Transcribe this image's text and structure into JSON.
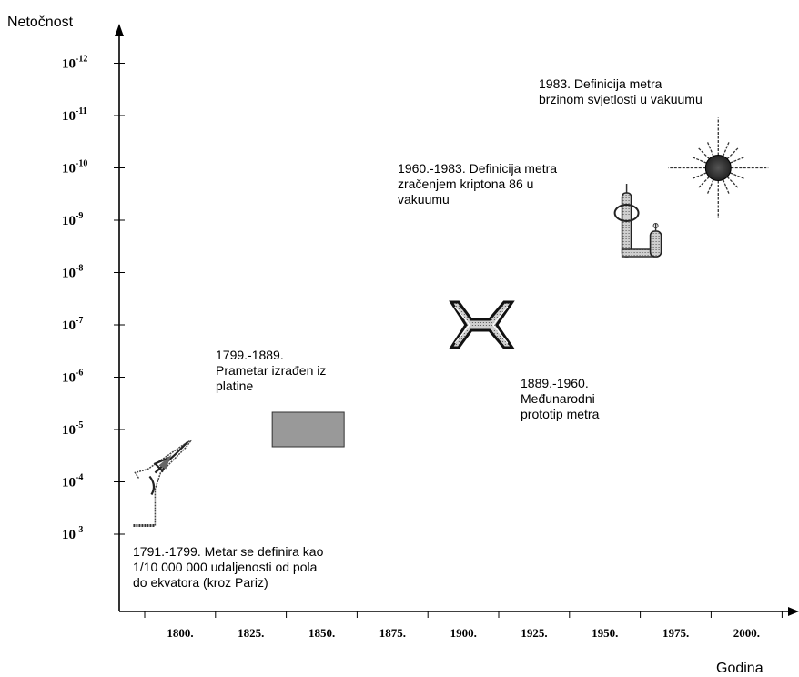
{
  "chart_data": {
    "type": "scatter",
    "ylabel": "Netočnost",
    "xlabel": "Godina",
    "x_ticks": [
      "1800.",
      "1825.",
      "1850.",
      "1875.",
      "1900.",
      "1925.",
      "1950.",
      "1975.",
      "2000."
    ],
    "y_ticks": [
      {
        "base": "10",
        "exp": "-3"
      },
      {
        "base": "10",
        "exp": "-4"
      },
      {
        "base": "10",
        "exp": "-5"
      },
      {
        "base": "10",
        "exp": "-6"
      },
      {
        "base": "10",
        "exp": "-7"
      },
      {
        "base": "10",
        "exp": "-8"
      },
      {
        "base": "10",
        "exp": "-9"
      },
      {
        "base": "10",
        "exp": "-10"
      },
      {
        "base": "10",
        "exp": "-11"
      },
      {
        "base": "10",
        "exp": "-12"
      }
    ],
    "xlim": [
      1770,
      2045
    ],
    "y_scale": "log",
    "grid": false,
    "points": [
      {
        "icon": "eiffel-tower-icon",
        "year": 1795,
        "inaccuracy_exp": -4,
        "label_lines": [
          "1791.-1799. Metar se definira kao",
          "1/10 000 000 udaljenosti od pola",
          "do ekvatora (kroz Pariz)"
        ]
      },
      {
        "icon": "platinum-bar-icon",
        "year": 1846,
        "inaccuracy_exp": -5,
        "label_lines": [
          "1799.-1889.",
          "Prametar izrađen iz",
          "platine"
        ]
      },
      {
        "icon": "x-prototype-icon",
        "year": 1906,
        "inaccuracy_exp": -7,
        "label_lines": [
          "1889.-1960.",
          "Međunarodni",
          "prototip metra"
        ]
      },
      {
        "icon": "krypton-lamp-icon",
        "year": 1957,
        "inaccuracy_exp": -9,
        "label_lines": [
          "1960.-1983. Definicija metra",
          "zračenjem  kriptona 86 u",
          "vakuumu"
        ]
      },
      {
        "icon": "light-burst-icon",
        "year": 1990,
        "inaccuracy_exp": -10,
        "label_lines": [
          "1983. Definicija metra",
          "brzinom svjetlosti u vakuumu"
        ]
      }
    ]
  }
}
